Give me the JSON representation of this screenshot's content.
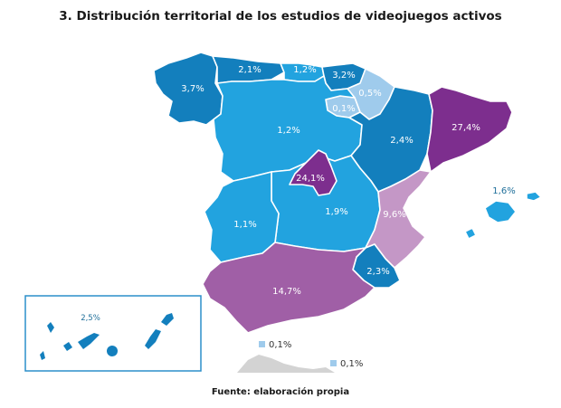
{
  "title": "3. Distribución territorial de los estudios de videojuegos activos",
  "source": "Fuente: elaboración propia",
  "colors": {
    "dark_blue": "#137fbd",
    "mid_blue": "#22a3df",
    "light_blue": "#9fcbec",
    "dark_purple": "#7d2e8e",
    "mid_purple": "#a05fa6",
    "light_purple": "#c497c6",
    "gray": "#d3d3d3"
  },
  "regions": [
    {
      "name": "Galicia",
      "value": "3,7%"
    },
    {
      "name": "Asturias",
      "value": "2,1%"
    },
    {
      "name": "Cantabria",
      "value": "1,2%"
    },
    {
      "name": "País Vasco",
      "value": "3,2%"
    },
    {
      "name": "Navarra",
      "value": "0,5%"
    },
    {
      "name": "La Rioja",
      "value": "0,1%"
    },
    {
      "name": "Castilla y León",
      "value": "1,2%"
    },
    {
      "name": "Aragón",
      "value": "2,4%"
    },
    {
      "name": "Cataluña",
      "value": "27,4%"
    },
    {
      "name": "Madrid",
      "value": "24,1%"
    },
    {
      "name": "Extremadura",
      "value": "1,1%"
    },
    {
      "name": "Castilla-La Mancha",
      "value": "1,9%"
    },
    {
      "name": "Comunidad Valenciana",
      "value": "9,6%"
    },
    {
      "name": "Islas Baleares",
      "value": "1,6%"
    },
    {
      "name": "Murcia",
      "value": "2,3%"
    },
    {
      "name": "Andalucía",
      "value": "14,7%"
    },
    {
      "name": "Canarias",
      "value": "2,5%"
    },
    {
      "name": "Ceuta",
      "value": "0,1%"
    },
    {
      "name": "Melilla",
      "value": "0,1%"
    }
  ]
}
